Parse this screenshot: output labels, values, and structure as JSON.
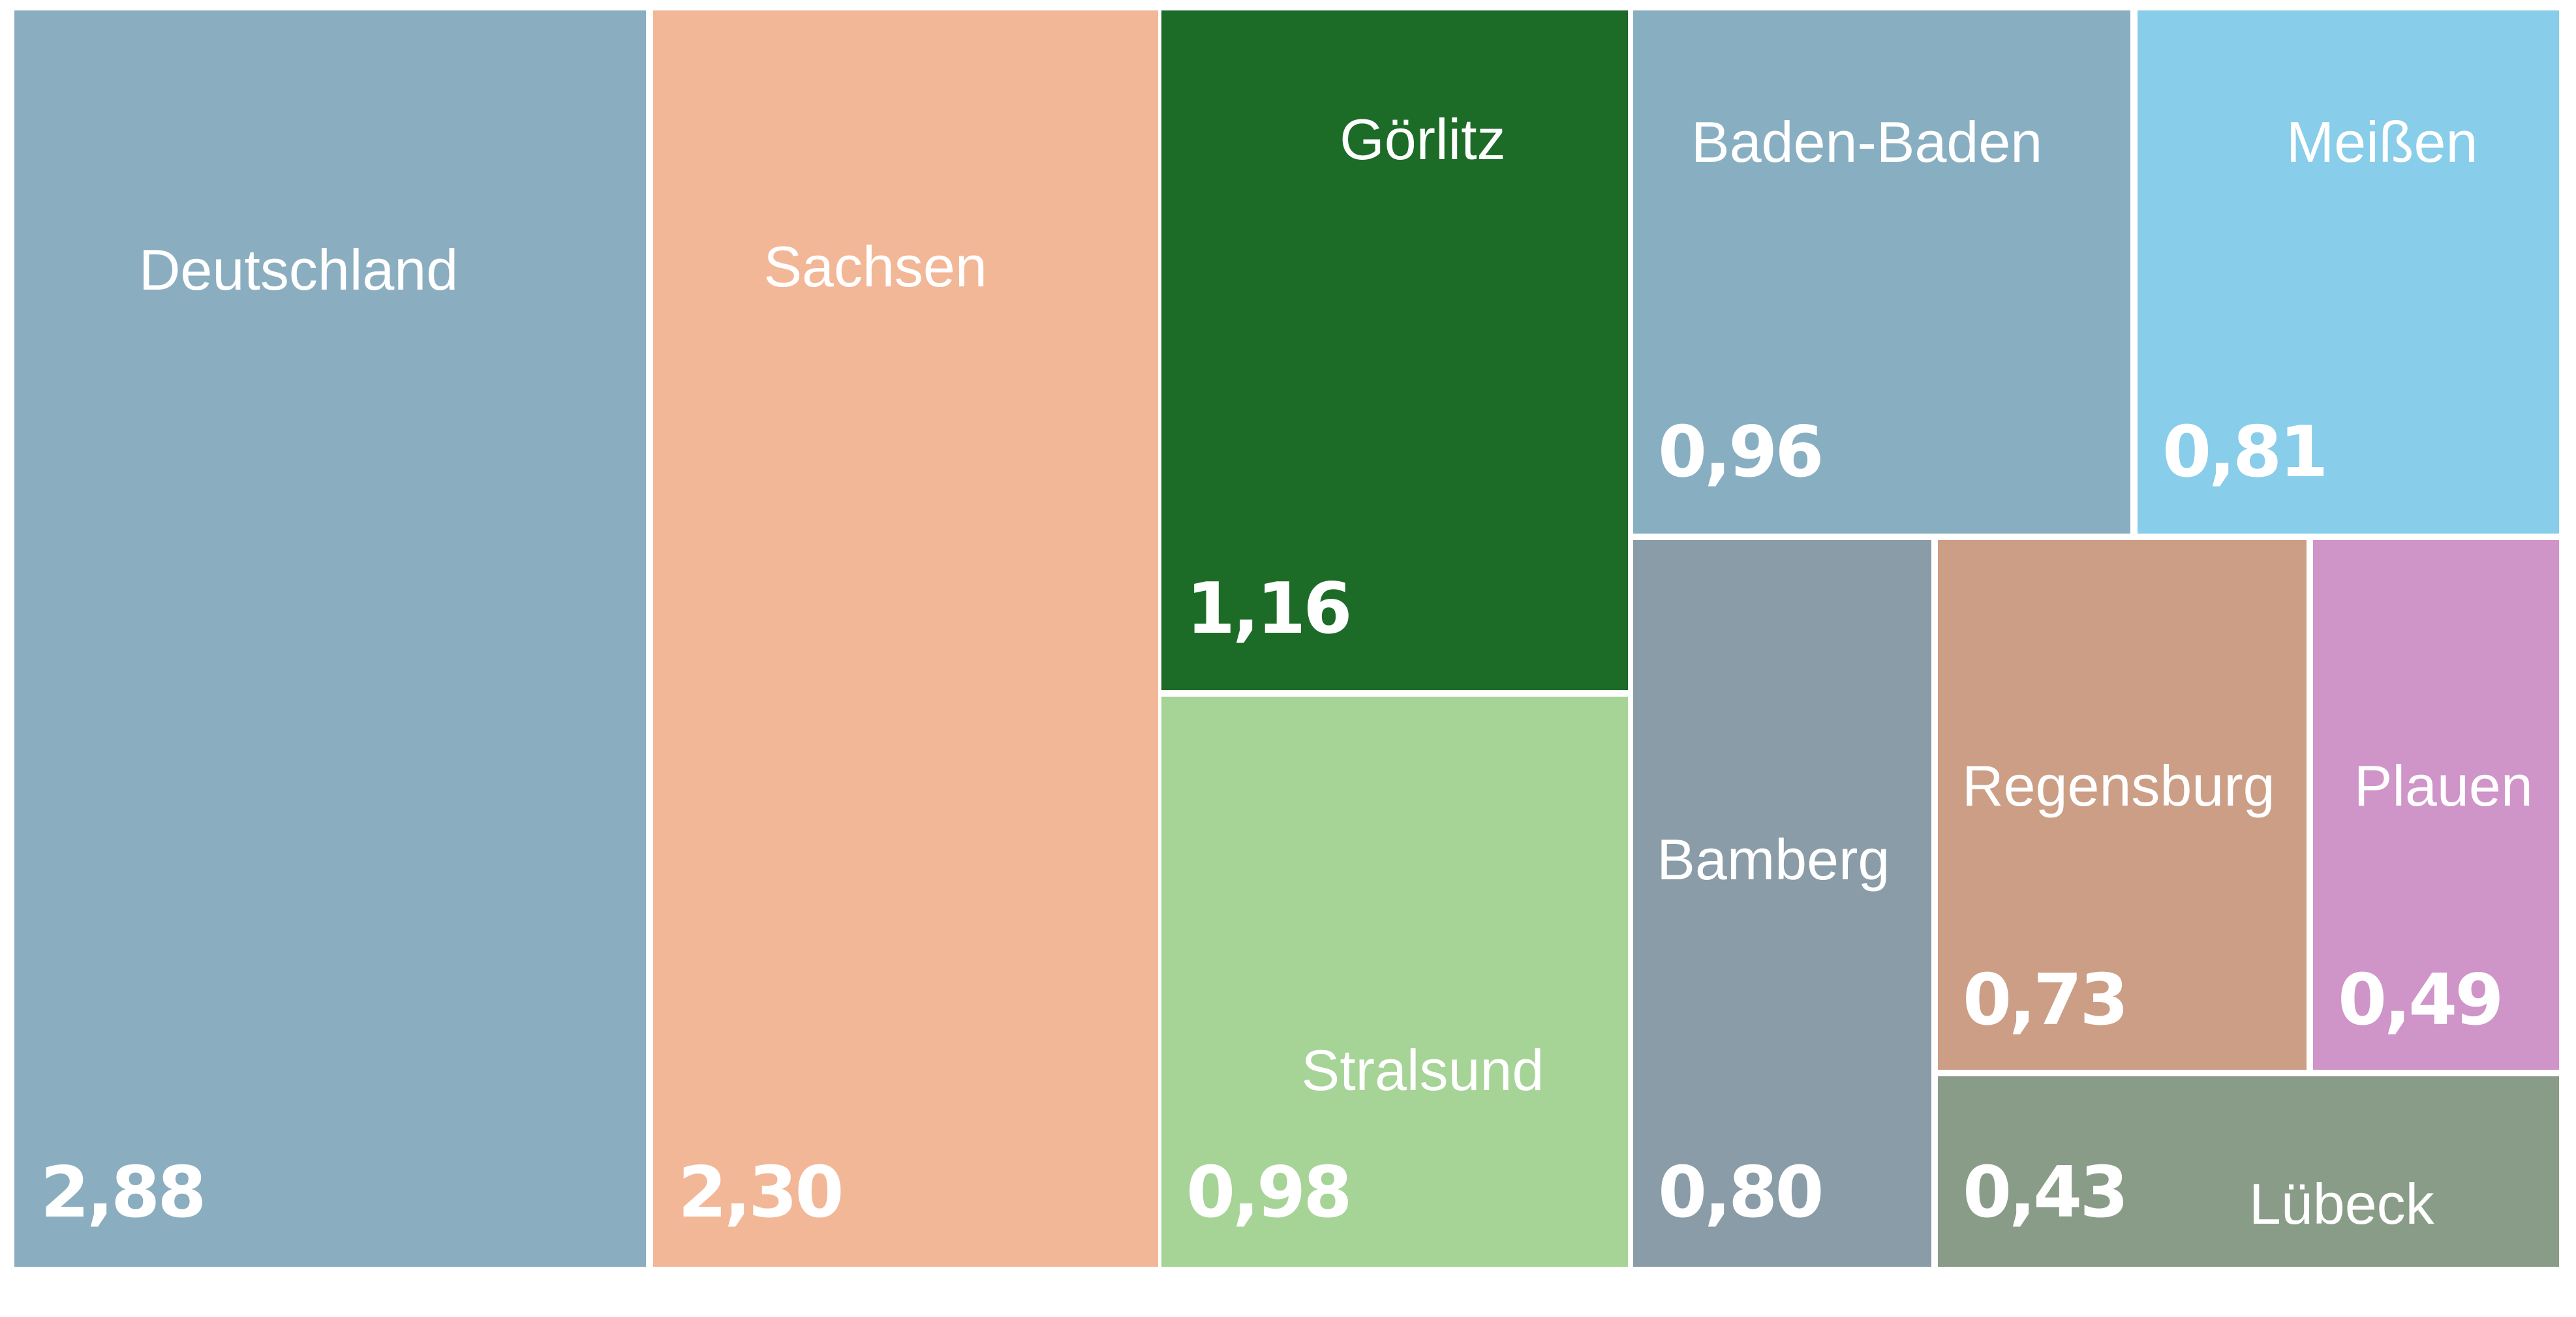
{
  "chart_data": {
    "type": "treemap",
    "title": "",
    "decimal_separator": ",",
    "items": [
      {
        "name": "Deutschland",
        "value": 2.88,
        "value_label": "2,88",
        "color": "#8aaec0"
      },
      {
        "name": "Sachsen",
        "value": 2.3,
        "value_label": "2,30",
        "color": "#f2b797"
      },
      {
        "name": "Görlitz",
        "value": 1.16,
        "value_label": "1,16",
        "color": "#1c6c27"
      },
      {
        "name": "Stralsund",
        "value": 0.98,
        "value_label": "0,98",
        "color": "#a6d396"
      },
      {
        "name": "Baden-Baden",
        "value": 0.96,
        "value_label": "0,96",
        "color": "#88afc1"
      },
      {
        "name": "Meißen",
        "value": 0.81,
        "value_label": "0,81",
        "color": "#88cde9"
      },
      {
        "name": "Bamberg",
        "value": 0.8,
        "value_label": "0,80",
        "color": "#899ca7"
      },
      {
        "name": "Regensburg",
        "value": 0.73,
        "value_label": "0,73",
        "color": "#cb9e85"
      },
      {
        "name": "Plauen",
        "value": 0.49,
        "value_label": "0,49",
        "color": "#cf94c8"
      },
      {
        "name": "Lübeck",
        "value": 0.43,
        "value_label": "0,43",
        "color": "#899c87"
      }
    ]
  }
}
